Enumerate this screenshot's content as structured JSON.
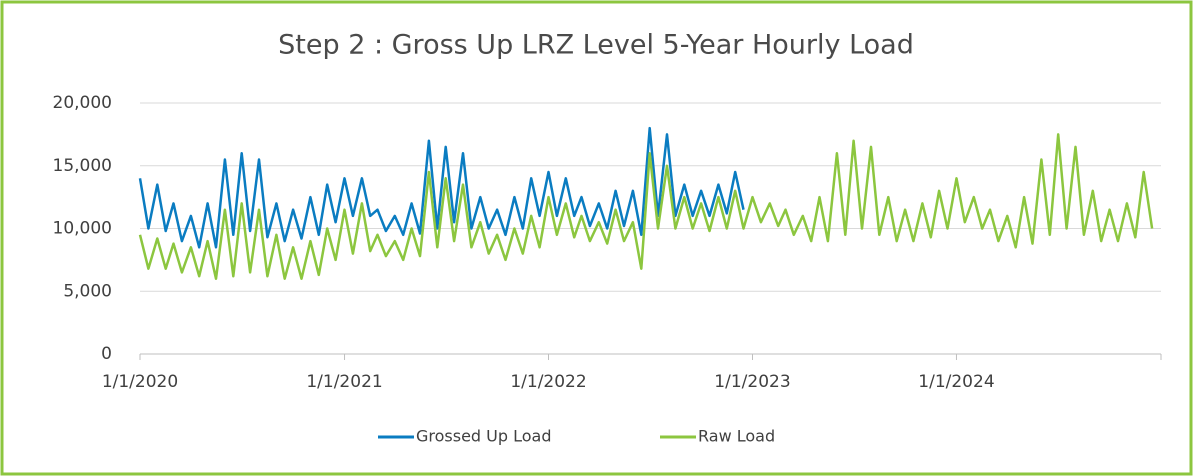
{
  "chart_data": {
    "type": "line",
    "title": "Step 2 : Gross Up LRZ Level 5-Year Hourly Load",
    "x": [
      "2020-01-01",
      "2020-01-16",
      "2020-02-01",
      "2020-02-16",
      "2020-03-01",
      "2020-03-16",
      "2020-04-01",
      "2020-04-16",
      "2020-05-01",
      "2020-05-16",
      "2020-06-01",
      "2020-06-16",
      "2020-07-01",
      "2020-07-16",
      "2020-08-01",
      "2020-08-16",
      "2020-09-01",
      "2020-09-16",
      "2020-10-01",
      "2020-10-16",
      "2020-11-01",
      "2020-11-16",
      "2020-12-01",
      "2020-12-16",
      "2021-01-01",
      "2021-01-16",
      "2021-02-01",
      "2021-02-16",
      "2021-03-01",
      "2021-03-16",
      "2021-04-01",
      "2021-04-16",
      "2021-05-01",
      "2021-05-16",
      "2021-06-01",
      "2021-06-16",
      "2021-07-01",
      "2021-07-16",
      "2021-08-01",
      "2021-08-16",
      "2021-09-01",
      "2021-09-16",
      "2021-10-01",
      "2021-10-16",
      "2021-11-01",
      "2021-11-16",
      "2021-12-01",
      "2021-12-16",
      "2022-01-01",
      "2022-01-16",
      "2022-02-01",
      "2022-02-16",
      "2022-03-01",
      "2022-03-16",
      "2022-04-01",
      "2022-04-16",
      "2022-05-01",
      "2022-05-16",
      "2022-06-01",
      "2022-06-16",
      "2022-07-01",
      "2022-07-16",
      "2022-08-01",
      "2022-08-16",
      "2022-09-01",
      "2022-09-16",
      "2022-10-01",
      "2022-10-16",
      "2022-11-01",
      "2022-11-16",
      "2022-12-01",
      "2022-12-16",
      "2023-01-01",
      "2023-01-16",
      "2023-02-01",
      "2023-02-16",
      "2023-03-01",
      "2023-03-16",
      "2023-04-01",
      "2023-04-16",
      "2023-05-01",
      "2023-05-16",
      "2023-06-01",
      "2023-06-16",
      "2023-07-01",
      "2023-07-16",
      "2023-08-01",
      "2023-08-16",
      "2023-09-01",
      "2023-09-16",
      "2023-10-01",
      "2023-10-16",
      "2023-11-01",
      "2023-11-16",
      "2023-12-01",
      "2023-12-16",
      "2024-01-01",
      "2024-01-16",
      "2024-02-01",
      "2024-02-16",
      "2024-03-01",
      "2024-03-16",
      "2024-04-01",
      "2024-04-16",
      "2024-05-01",
      "2024-05-16",
      "2024-06-01",
      "2024-06-16",
      "2024-07-01",
      "2024-07-16",
      "2024-08-01",
      "2024-08-16",
      "2024-09-01",
      "2024-09-16",
      "2024-10-01",
      "2024-10-16",
      "2024-11-01",
      "2024-11-16",
      "2024-12-01",
      "2024-12-16"
    ],
    "series": [
      {
        "name": "Grossed Up Load",
        "color": "#0a7cc1",
        "values": [
          14000,
          10000,
          13500,
          9800,
          12000,
          9000,
          11000,
          8500,
          12000,
          8500,
          15500,
          9500,
          16000,
          9800,
          15500,
          9300,
          12000,
          9000,
          11500,
          9200,
          12500,
          9500,
          13500,
          10500,
          14000,
          11000,
          14000,
          11000,
          11500,
          9800,
          11000,
          9500,
          12000,
          9600,
          17000,
          10000,
          16500,
          10500,
          16000,
          10000,
          12500,
          10000,
          11500,
          9500,
          12500,
          10000,
          14000,
          11000,
          14500,
          11000,
          14000,
          11000,
          12500,
          10200,
          12000,
          10000,
          13000,
          10200,
          13000,
          9500,
          18000,
          11000,
          17500,
          11000,
          13500,
          11000,
          13000,
          11000,
          13500,
          11200,
          14500,
          11500,
          null,
          null,
          null,
          null,
          null,
          null,
          null,
          null,
          null,
          null,
          null,
          null,
          null,
          null,
          null,
          null,
          null,
          null,
          null,
          null,
          null,
          null,
          null,
          null,
          null,
          null,
          null,
          null,
          null,
          null,
          null,
          null,
          null,
          null,
          null,
          null,
          null,
          null,
          null,
          null,
          null,
          null,
          null,
          null,
          null,
          null,
          null,
          null
        ]
      },
      {
        "name": "Raw Load",
        "color": "#8cc63f",
        "values": [
          9500,
          6800,
          9200,
          6800,
          8800,
          6500,
          8500,
          6200,
          9000,
          6000,
          11500,
          6200,
          12000,
          6500,
          11500,
          6200,
          9500,
          6000,
          8500,
          6000,
          9000,
          6300,
          10000,
          7500,
          11500,
          8000,
          12000,
          8200,
          9500,
          7800,
          9000,
          7500,
          10000,
          7800,
          14500,
          8500,
          14000,
          9000,
          13500,
          8500,
          10500,
          8000,
          9500,
          7500,
          10000,
          8000,
          11000,
          8500,
          12500,
          9500,
          12000,
          9300,
          11000,
          9000,
          10500,
          8800,
          11500,
          9000,
          10500,
          6800,
          16000,
          10000,
          15000,
          10000,
          12500,
          10000,
          12000,
          9800,
          12500,
          10000,
          13000,
          10000,
          12500,
          10500,
          12000,
          10200,
          11500,
          9500,
          11000,
          9000,
          12500,
          9000,
          16000,
          9500,
          17000,
          10000,
          16500,
          9500,
          12500,
          9000,
          11500,
          9000,
          12000,
          9300,
          13000,
          10000,
          14000,
          10500,
          12500,
          10000,
          11500,
          9000,
          11000,
          8500,
          12500,
          8800,
          15500,
          9500,
          17500,
          10000,
          16500,
          9500,
          13000,
          9000,
          11500,
          9000,
          12000,
          9300,
          14500,
          10000
        ]
      }
    ],
    "xlim": [
      "2020-01-01",
      "2025-01-01"
    ],
    "xticks": [
      {
        "value": "2020-01-01",
        "label": "1/1/2020"
      },
      {
        "value": "2021-01-01",
        "label": "1/1/2021"
      },
      {
        "value": "2022-01-01",
        "label": "1/1/2022"
      },
      {
        "value": "2023-01-01",
        "label": "1/1/2023"
      },
      {
        "value": "2024-01-01",
        "label": "1/1/2024"
      }
    ],
    "ylim": [
      0,
      20000
    ],
    "yticks": [
      0,
      {
        "value": 5000,
        "label": "5,000"
      },
      {
        "value": 10000,
        "label": "10,000"
      },
      {
        "value": 15000,
        "label": "15,000"
      },
      {
        "value": 20000,
        "label": "20,000"
      }
    ],
    "grid": true,
    "legend": "bottom"
  }
}
